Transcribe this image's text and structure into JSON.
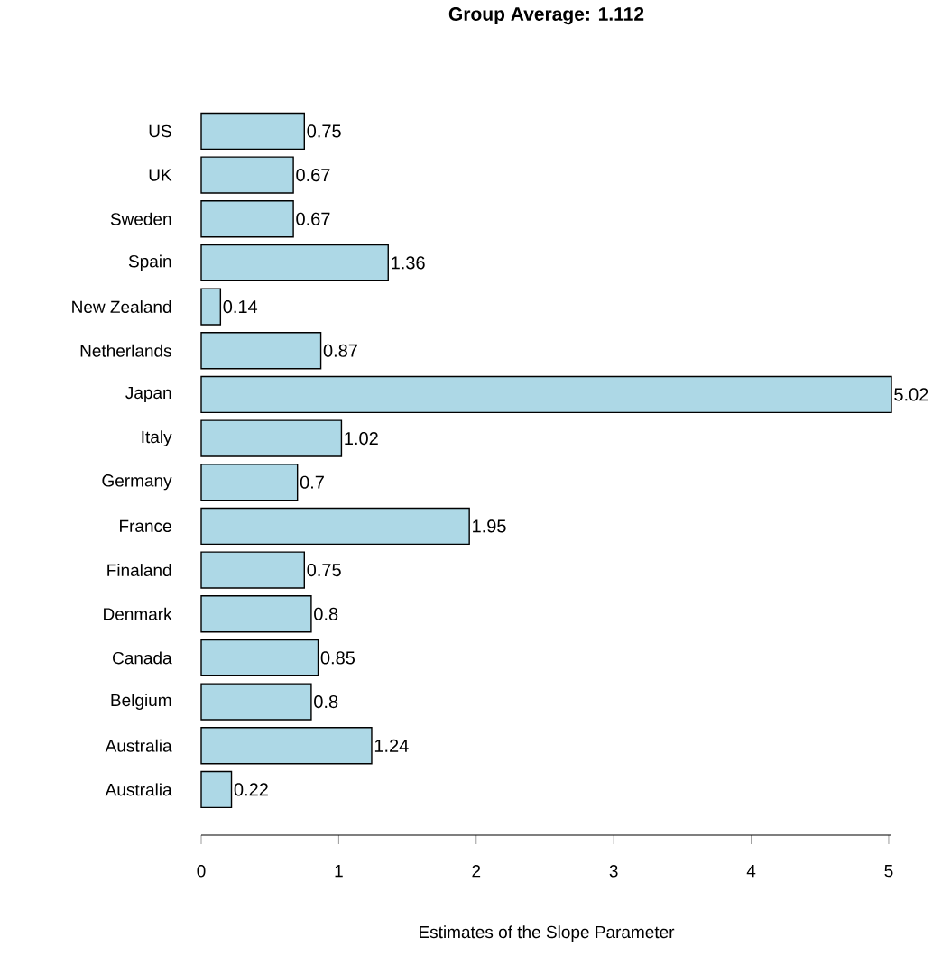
{
  "chart_data": {
    "type": "bar",
    "orientation": "horizontal",
    "title": "Group Average: 1.112",
    "xlabel": "Estimates of the Slope Parameter",
    "categories": [
      "US",
      "UK",
      "Sweden",
      "Spain",
      "New Zealand",
      "Netherlands",
      "Japan",
      "Italy",
      "Germany",
      "France",
      "Finaland",
      "Denmark",
      "Canada",
      "Belgium",
      "Australia",
      "Australia"
    ],
    "values": [
      0.75,
      0.67,
      0.67,
      1.36,
      0.14,
      0.87,
      5.02,
      1.02,
      0.7,
      1.95,
      0.75,
      0.8,
      0.85,
      0.8,
      1.24,
      0.22
    ],
    "color": "#add8e6",
    "data_labels": true,
    "xlim": [
      0,
      5.02
    ],
    "xticks": [
      0,
      1,
      2,
      3,
      4,
      5
    ]
  }
}
